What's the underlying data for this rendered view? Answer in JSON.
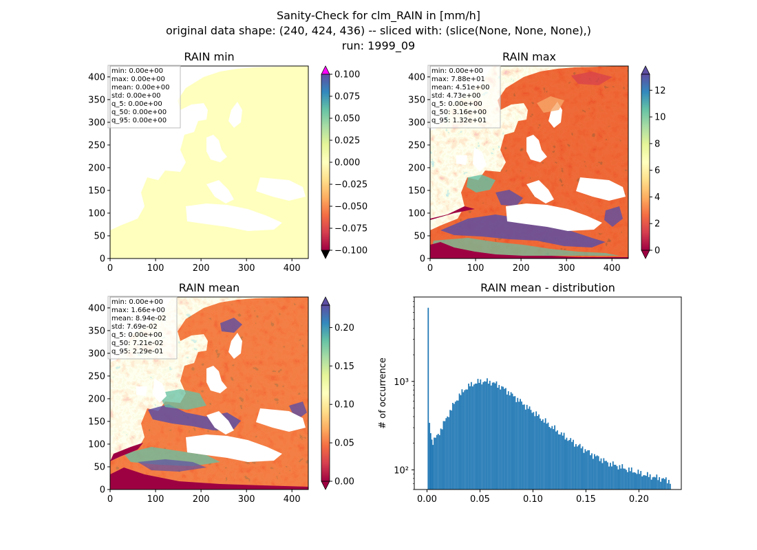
{
  "figure": {
    "suptitle_line1": "Sanity-Check for clm_RAIN in [mm/h]",
    "suptitle_line2": "original data shape: (240, 424, 436) -- sliced with: (slice(None, None, None),)",
    "suptitle_line3": "run: 1999_09"
  },
  "colors": {
    "min_field": "#ffffbe",
    "hist_bar": "#1f77b4",
    "spectral": [
      "#9e0142",
      "#d53e4f",
      "#f46d43",
      "#fdae61",
      "#fee08b",
      "#ffffbf",
      "#e6f598",
      "#abdda4",
      "#66c2a5",
      "#3288bd",
      "#5e4fa2"
    ],
    "under": "#000000",
    "over_min": "#ff00ff"
  },
  "panels": [
    {
      "title": "RAIN min",
      "stats": [
        "min: 0.00e+00",
        "max: 0.00e+00",
        "mean: 0.00e+00",
        "std: 0.00e+00",
        "q_5: 0.00e+00",
        "q_50: 0.00e+00",
        "q_95: 0.00e+00"
      ],
      "colorbar": {
        "ticks": [
          "0.100",
          "0.075",
          "0.050",
          "0.025",
          "0.000",
          "−0.025",
          "−0.050",
          "−0.075",
          "−0.100"
        ],
        "vmin": -0.1,
        "vmax": 0.1
      }
    },
    {
      "title": "RAIN max",
      "stats": [
        "min: 0.00e+00",
        "max: 7.88e+01",
        "mean: 4.51e+00",
        "std: 4.73e+00",
        "q_5: 0.00e+00",
        "q_50: 3.16e+00",
        "q_95: 1.32e+01"
      ],
      "colorbar": {
        "ticks": [
          "12",
          "10",
          "8",
          "6",
          "4",
          "2",
          "0"
        ],
        "vmin": 0,
        "vmax": 13.2
      }
    },
    {
      "title": "RAIN mean",
      "stats": [
        "min: 0.00e+00",
        "max: 1.66e+00",
        "mean: 8.94e-02",
        "std: 7.69e-02",
        "q_5: 0.00e+00",
        "q_50: 7.21e-02",
        "q_95: 2.29e-01"
      ],
      "colorbar": {
        "ticks": [
          "0.20",
          "0.15",
          "0.10",
          "0.05",
          "0.00"
        ],
        "vmin": 0,
        "vmax": 0.229
      }
    }
  ],
  "map_axes": {
    "xticks": [
      "0",
      "100",
      "200",
      "300",
      "400"
    ],
    "yticks": [
      "400",
      "350",
      "300",
      "250",
      "200",
      "150",
      "100",
      "50",
      "0"
    ]
  },
  "chart_data": {
    "type": "bar",
    "title": "RAIN mean - distribution",
    "xlabel": "",
    "ylabel": "# of occurrence",
    "yscale": "log",
    "ylim": [
      60,
      9000
    ],
    "xlim": [
      -0.012,
      0.24
    ],
    "xticks": [
      "0.00",
      "0.05",
      "0.10",
      "0.15",
      "0.20"
    ],
    "yticks": [
      "10³",
      "10²"
    ],
    "bin_width": 0.00115,
    "x": [
      0.0006,
      0.0018,
      0.0029,
      0.004,
      0.005,
      0.01,
      0.015,
      0.02,
      0.025,
      0.03,
      0.035,
      0.04,
      0.045,
      0.05,
      0.055,
      0.06,
      0.065,
      0.07,
      0.075,
      0.08,
      0.085,
      0.09,
      0.095,
      0.1,
      0.105,
      0.11,
      0.115,
      0.12,
      0.125,
      0.13,
      0.135,
      0.14,
      0.145,
      0.15,
      0.155,
      0.16,
      0.165,
      0.17,
      0.175,
      0.18,
      0.185,
      0.19,
      0.195,
      0.2,
      0.205,
      0.21,
      0.215,
      0.22,
      0.225,
      0.229
    ],
    "values": [
      6800,
      340,
      260,
      220,
      210,
      250,
      330,
      430,
      560,
      690,
      810,
      900,
      960,
      1000,
      1000,
      980,
      930,
      860,
      780,
      700,
      630,
      560,
      500,
      450,
      400,
      360,
      320,
      290,
      260,
      235,
      215,
      195,
      180,
      165,
      150,
      140,
      130,
      120,
      115,
      110,
      105,
      100,
      96,
      92,
      88,
      85,
      82,
      80,
      77,
      75
    ]
  }
}
